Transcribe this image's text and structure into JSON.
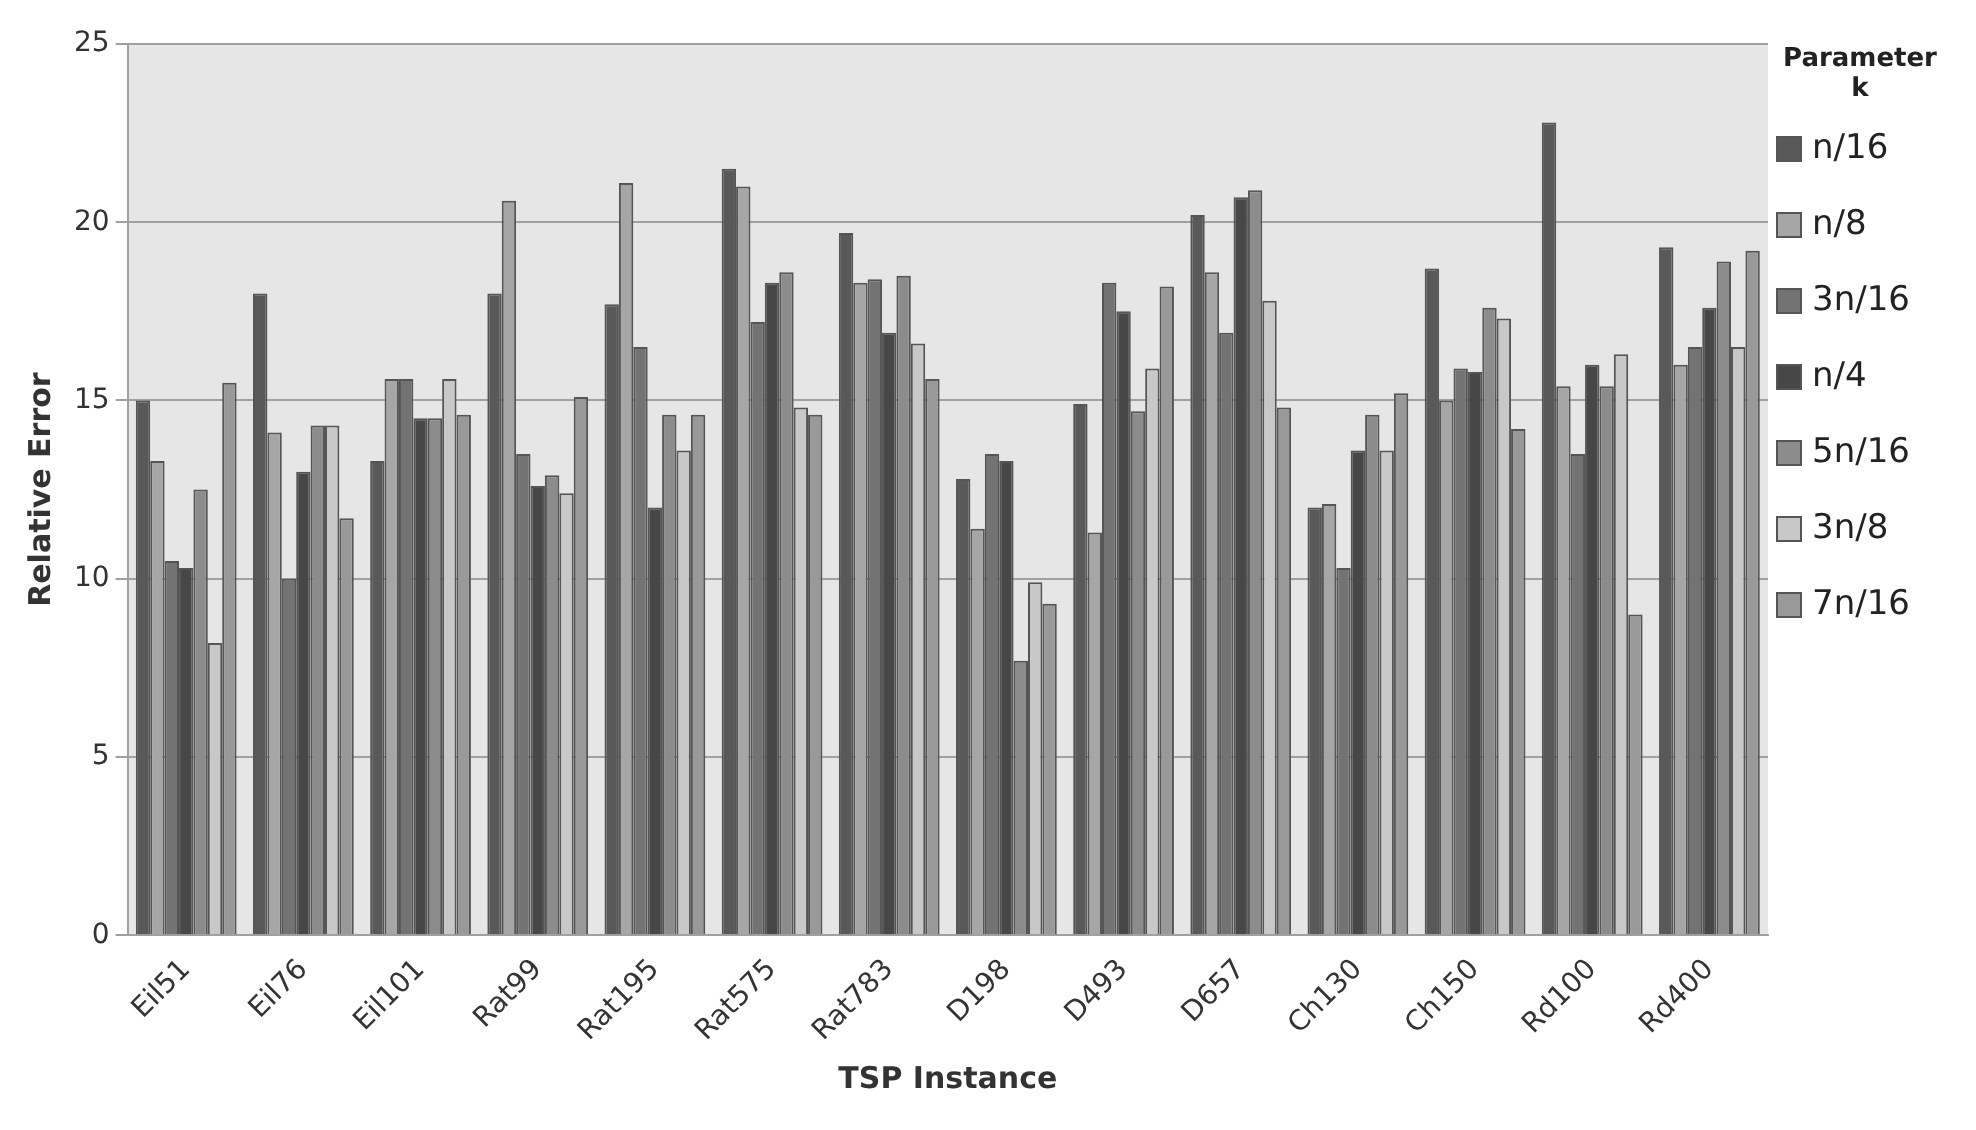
{
  "chart_data": {
    "type": "bar",
    "xlabel": "TSP Instance",
    "ylabel": "Relative Error",
    "legend_title": "Parameter k",
    "categories": [
      "Eil51",
      "Eil76",
      "Eil101",
      "Rat99",
      "Rat195",
      "Rat575",
      "Rat783",
      "D198",
      "D493",
      "D657",
      "Ch130",
      "Ch150",
      "Rd100",
      "Rd400"
    ],
    "series": [
      {
        "name": "n/16",
        "color": "#595959",
        "values": [
          15.0,
          18.0,
          13.3,
          18.0,
          17.7,
          21.5,
          19.7,
          12.8,
          14.9,
          20.2,
          12.0,
          18.7,
          22.8,
          19.3
        ]
      },
      {
        "name": "n/8",
        "color": "#a6a6a6",
        "values": [
          13.3,
          14.1,
          15.6,
          20.6,
          21.1,
          21.0,
          18.3,
          11.4,
          11.3,
          18.6,
          12.1,
          15.0,
          15.4,
          16.0
        ]
      },
      {
        "name": "3n/16",
        "color": "#737373",
        "values": [
          10.5,
          10.0,
          15.6,
          13.5,
          16.5,
          17.2,
          18.4,
          13.5,
          18.3,
          16.9,
          10.3,
          15.9,
          13.5,
          16.5
        ]
      },
      {
        "name": "n/4",
        "color": "#474747",
        "values": [
          10.3,
          13.0,
          14.5,
          12.6,
          12.0,
          18.3,
          16.9,
          13.3,
          17.5,
          20.7,
          13.6,
          15.8,
          16.0,
          17.6
        ]
      },
      {
        "name": "5n/16",
        "color": "#8c8c8c",
        "values": [
          12.5,
          14.3,
          14.5,
          12.9,
          14.6,
          18.6,
          18.5,
          7.7,
          14.7,
          20.9,
          14.6,
          17.6,
          15.4,
          18.9
        ]
      },
      {
        "name": "3n/8",
        "color": "#c8c8c8",
        "values": [
          8.2,
          14.3,
          15.6,
          12.4,
          13.6,
          14.8,
          16.6,
          9.9,
          15.9,
          17.8,
          13.6,
          17.3,
          16.3,
          16.5
        ]
      },
      {
        "name": "7n/16",
        "color": "#999999",
        "values": [
          15.5,
          11.7,
          14.6,
          15.1,
          14.6,
          14.6,
          15.6,
          9.3,
          18.2,
          14.8,
          15.2,
          14.2,
          9.0,
          19.2
        ]
      }
    ],
    "ylim": [
      0,
      25
    ],
    "yticks": [
      0,
      5,
      10,
      15,
      20,
      25
    ],
    "grid": "y",
    "legend": "right"
  }
}
